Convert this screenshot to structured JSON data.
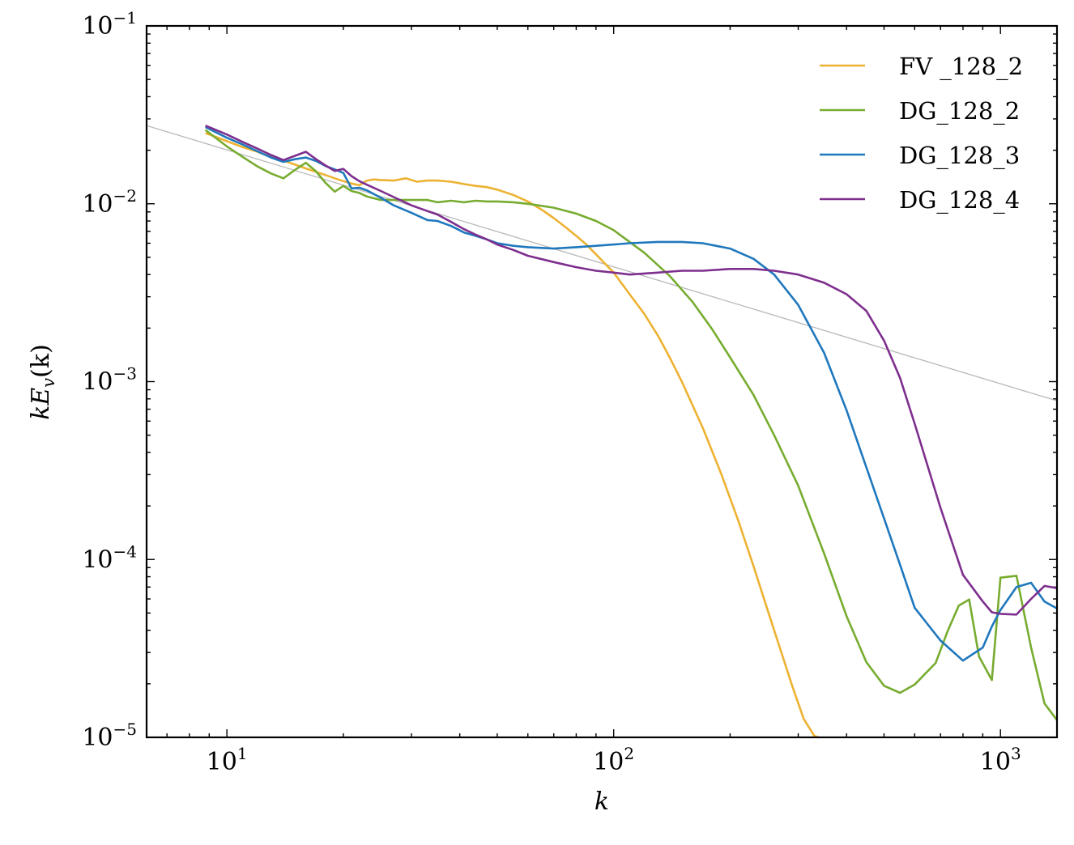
{
  "chart_data": {
    "type": "line",
    "title": "",
    "xlabel": "k",
    "ylabel": "kE_v(k)",
    "ylabel_parts": {
      "k": "k",
      "E": "E",
      "sub": "v",
      "arg": "(k)"
    },
    "xscale": "log",
    "yscale": "log",
    "xlim": [
      6.2,
      1400
    ],
    "ylim": [
      1e-05,
      0.1
    ],
    "grid": false,
    "legend_position": "top-right",
    "x_ticks": [
      {
        "value": 10,
        "base": "10",
        "exp": "1"
      },
      {
        "value": 100,
        "base": "10",
        "exp": "2"
      },
      {
        "value": 1000,
        "base": "10",
        "exp": "3"
      }
    ],
    "y_ticks": [
      {
        "value": 0.1,
        "base": "10",
        "exp": "−1"
      },
      {
        "value": 0.01,
        "base": "10",
        "exp": "−2"
      },
      {
        "value": 0.001,
        "base": "10",
        "exp": "−3"
      },
      {
        "value": 0.0001,
        "base": "10",
        "exp": "−4"
      },
      {
        "value": 1e-05,
        "base": "10",
        "exp": "−5"
      }
    ],
    "reference_line": {
      "name": "k^(-2/3) reference",
      "color": "#b8b8b8",
      "x": [
        6.2,
        1400
      ],
      "y": [
        0.0275,
        0.00078
      ]
    },
    "series": [
      {
        "name": "FV_128_2",
        "label": "FV _128_2",
        "color": "#edb232",
        "x": [
          8.8,
          10,
          11,
          12,
          13,
          14,
          15,
          16,
          17,
          18,
          19,
          20,
          21,
          22,
          23,
          24,
          25,
          27,
          29,
          31,
          33,
          35,
          38,
          41,
          44,
          47,
          50,
          55,
          60,
          65,
          70,
          75,
          80,
          85,
          90,
          100,
          110,
          120,
          130,
          140,
          150,
          170,
          190,
          210,
          230,
          250,
          270,
          290,
          310,
          330,
          338
        ],
        "y": [
          0.025,
          0.0225,
          0.0208,
          0.0196,
          0.0183,
          0.0175,
          0.0166,
          0.0158,
          0.0151,
          0.0145,
          0.0139,
          0.0134,
          0.013,
          0.0127,
          0.0135,
          0.0137,
          0.0136,
          0.0135,
          0.0139,
          0.0133,
          0.0135,
          0.0135,
          0.0133,
          0.0129,
          0.0126,
          0.0124,
          0.012,
          0.0112,
          0.0103,
          0.0093,
          0.0083,
          0.0074,
          0.0066,
          0.0059,
          0.0052,
          0.0041,
          0.0031,
          0.0024,
          0.00182,
          0.00135,
          0.001,
          0.00055,
          0.0003,
          0.000165,
          9.15e-05,
          5.2e-05,
          3.1e-05,
          1.92e-05,
          1.27e-05,
          1.02e-05,
          1e-05
        ]
      },
      {
        "name": "DG_128_2",
        "label": "DG_128_2",
        "color": "#77ac30",
        "x": [
          8.8,
          10,
          11,
          12,
          13,
          14,
          15,
          16,
          17,
          18,
          19,
          20,
          21,
          22,
          23,
          25,
          27,
          29,
          31,
          33,
          35,
          38,
          41,
          44,
          47,
          50,
          55,
          60,
          70,
          80,
          90,
          100,
          120,
          140,
          160,
          180,
          200,
          230,
          260,
          300,
          350,
          400,
          450,
          500,
          550,
          600,
          680,
          730,
          780,
          830,
          880,
          950,
          1000,
          1100,
          1200,
          1300,
          1400
        ],
        "y": [
          0.026,
          0.021,
          0.0183,
          0.0162,
          0.0148,
          0.0139,
          0.0155,
          0.017,
          0.0152,
          0.0131,
          0.0117,
          0.0126,
          0.0118,
          0.0115,
          0.011,
          0.0105,
          0.0105,
          0.0105,
          0.0105,
          0.0105,
          0.0102,
          0.0104,
          0.0102,
          0.0104,
          0.0103,
          0.0103,
          0.0102,
          0.01,
          0.0095,
          0.0088,
          0.008,
          0.0071,
          0.0053,
          0.0039,
          0.0028,
          0.00196,
          0.00137,
          0.00084,
          0.0005,
          0.00026,
          0.000108,
          4.8e-05,
          2.65e-05,
          1.95e-05,
          1.78e-05,
          1.98e-05,
          2.62e-05,
          3.95e-05,
          5.5e-05,
          5.95e-05,
          2.85e-05,
          2.1e-05,
          7.9e-05,
          8.1e-05,
          3.2e-05,
          1.55e-05,
          1.25e-05
        ]
      },
      {
        "name": "DG_128_3",
        "label": "DG_128_3",
        "color": "#1f78bd",
        "x": [
          8.8,
          10,
          11,
          12,
          13,
          14,
          15,
          16,
          17,
          18,
          19,
          20,
          21,
          22,
          23,
          25,
          27,
          30,
          33,
          35,
          38,
          41,
          44,
          47,
          50,
          55,
          60,
          70,
          80,
          90,
          100,
          110,
          130,
          150,
          170,
          200,
          230,
          260,
          300,
          350,
          400,
          450,
          500,
          550,
          600,
          700,
          800,
          900,
          950,
          1000,
          1100,
          1200,
          1300,
          1400
        ],
        "y": [
          0.027,
          0.0235,
          0.0215,
          0.0197,
          0.0182,
          0.0172,
          0.0178,
          0.0182,
          0.0174,
          0.0163,
          0.0156,
          0.0149,
          0.0122,
          0.0123,
          0.0119,
          0.0108,
          0.0098,
          0.0089,
          0.0081,
          0.008,
          0.0075,
          0.0069,
          0.0066,
          0.0063,
          0.006,
          0.0058,
          0.0057,
          0.0056,
          0.0057,
          0.0058,
          0.0059,
          0.006,
          0.0061,
          0.0061,
          0.006,
          0.0056,
          0.0049,
          0.004,
          0.0027,
          0.00145,
          0.00069,
          0.00033,
          0.00017,
          9.35e-05,
          5.35e-05,
          3.5e-05,
          2.7e-05,
          3.2e-05,
          4.2e-05,
          5.2e-05,
          7e-05,
          7.4e-05,
          5.8e-05,
          5.3e-05
        ]
      },
      {
        "name": "DG_128_4",
        "label": "DG_128_4",
        "color": "#7e2f8e",
        "x": [
          8.8,
          10,
          11,
          12,
          13,
          14,
          15,
          16,
          17,
          18,
          19,
          20,
          21,
          22,
          23,
          25,
          27,
          30,
          33,
          35,
          38,
          41,
          44,
          47,
          50,
          55,
          60,
          70,
          80,
          90,
          100,
          110,
          130,
          150,
          170,
          200,
          230,
          260,
          300,
          350,
          400,
          450,
          500,
          550,
          600,
          700,
          800,
          900,
          950,
          1000,
          1100,
          1200,
          1300,
          1400
        ],
        "y": [
          0.0275,
          0.0245,
          0.0222,
          0.0204,
          0.0188,
          0.0176,
          0.0186,
          0.0196,
          0.0178,
          0.0164,
          0.0153,
          0.0157,
          0.0143,
          0.0134,
          0.0128,
          0.0118,
          0.0109,
          0.0098,
          0.0091,
          0.0087,
          0.0079,
          0.0072,
          0.0067,
          0.0063,
          0.0059,
          0.0055,
          0.0051,
          0.0047,
          0.0044,
          0.0042,
          0.0041,
          0.004,
          0.0041,
          0.0042,
          0.0042,
          0.0043,
          0.0043,
          0.0042,
          0.004,
          0.0036,
          0.0031,
          0.0025,
          0.0017,
          0.00105,
          0.00058,
          0.000195,
          8.2e-05,
          5.8e-05,
          5.05e-05,
          4.95e-05,
          4.9e-05,
          6e-05,
          7.1e-05,
          6.9e-05
        ]
      }
    ]
  }
}
